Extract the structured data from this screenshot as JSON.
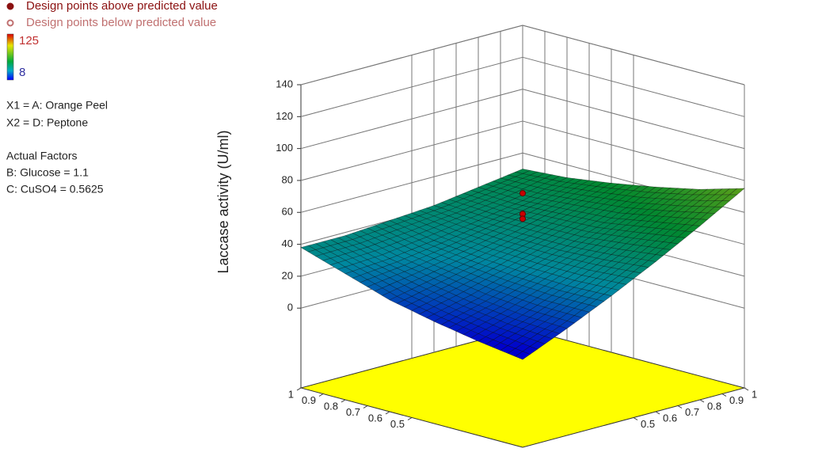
{
  "chart_data": {
    "type": "surface",
    "legend": [
      {
        "name": "Design points above predicted value",
        "color": "#8b1111"
      },
      {
        "name": "Design points below predicted value",
        "color": "#c07070"
      }
    ],
    "colorbar": {
      "max": 125,
      "min": 8
    },
    "factors": [
      "X1 = A: Orange Peel",
      "X2 = D: Peptone"
    ],
    "actual_factors_title": "Actual Factors",
    "actual_factors": [
      "B: Glucose = 1.1",
      "C: CuSO4 = 0.5625"
    ],
    "zlabel": "Laccase activity (U/ml)",
    "zlim": [
      -50,
      140
    ],
    "zticks": [
      0,
      20,
      40,
      60,
      80,
      100,
      120,
      140
    ],
    "x1lim": [
      0,
      1
    ],
    "x1ticks": [
      0.5,
      0.6,
      0.7,
      0.8,
      0.9,
      1
    ],
    "x2lim": [
      0,
      1
    ],
    "x2ticks": [
      0.5,
      0.6,
      0.7,
      0.8,
      0.9,
      1
    ],
    "floor_color": "#ffff00",
    "grid": true,
    "surface": {
      "x1": [
        0,
        0.2,
        0.4,
        0.6,
        0.8,
        1
      ],
      "x2": [
        0,
        0.2,
        0.4,
        0.6,
        0.8,
        1
      ],
      "z": [
        [
          5,
          17,
          30,
          44,
          59,
          75
        ],
        [
          9,
          18,
          29,
          41,
          54,
          67
        ],
        [
          14,
          21,
          30,
          39,
          49,
          61
        ],
        [
          20,
          26,
          32,
          39,
          47,
          56
        ],
        [
          29,
          31,
          35,
          40,
          45,
          52
        ],
        [
          38,
          38,
          40,
          42,
          46,
          50
        ]
      ]
    },
    "design_points": {
      "x1": [
        0.5,
        0.5,
        0.5
      ],
      "x2": [
        0.5,
        0.5,
        0.5
      ],
      "values": [
        72,
        59,
        56
      ],
      "color": "#cc0000"
    }
  }
}
